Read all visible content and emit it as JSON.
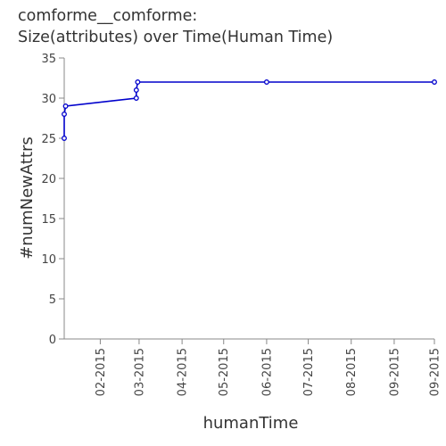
{
  "chart_data": {
    "type": "line",
    "title": "comforme__comforme:",
    "subtitle": "Size(attributes) over Time(Human Time)",
    "xlabel": "humanTime",
    "ylabel": "#numNewAttrs",
    "x_ticks": [
      "02-2015",
      "03-2015",
      "04-2015",
      "05-2015",
      "06-2015",
      "07-2015",
      "08-2015",
      "09-2015",
      "09-2015"
    ],
    "y_ticks": [
      0,
      5,
      10,
      15,
      20,
      25,
      30,
      35
    ],
    "ylim": [
      0,
      35
    ],
    "xlim": [
      "2015-01-06",
      "2015-09-30"
    ],
    "grid": false,
    "series": [
      {
        "color": "#0000cc",
        "x": [
          "2015-01-06",
          "2015-01-06",
          "2015-01-07",
          "2015-02-27",
          "2015-02-27",
          "2015-02-28",
          "2015-06-01",
          "2015-09-30"
        ],
        "values": [
          25,
          28,
          29,
          30,
          31,
          32,
          32,
          32
        ]
      }
    ]
  }
}
